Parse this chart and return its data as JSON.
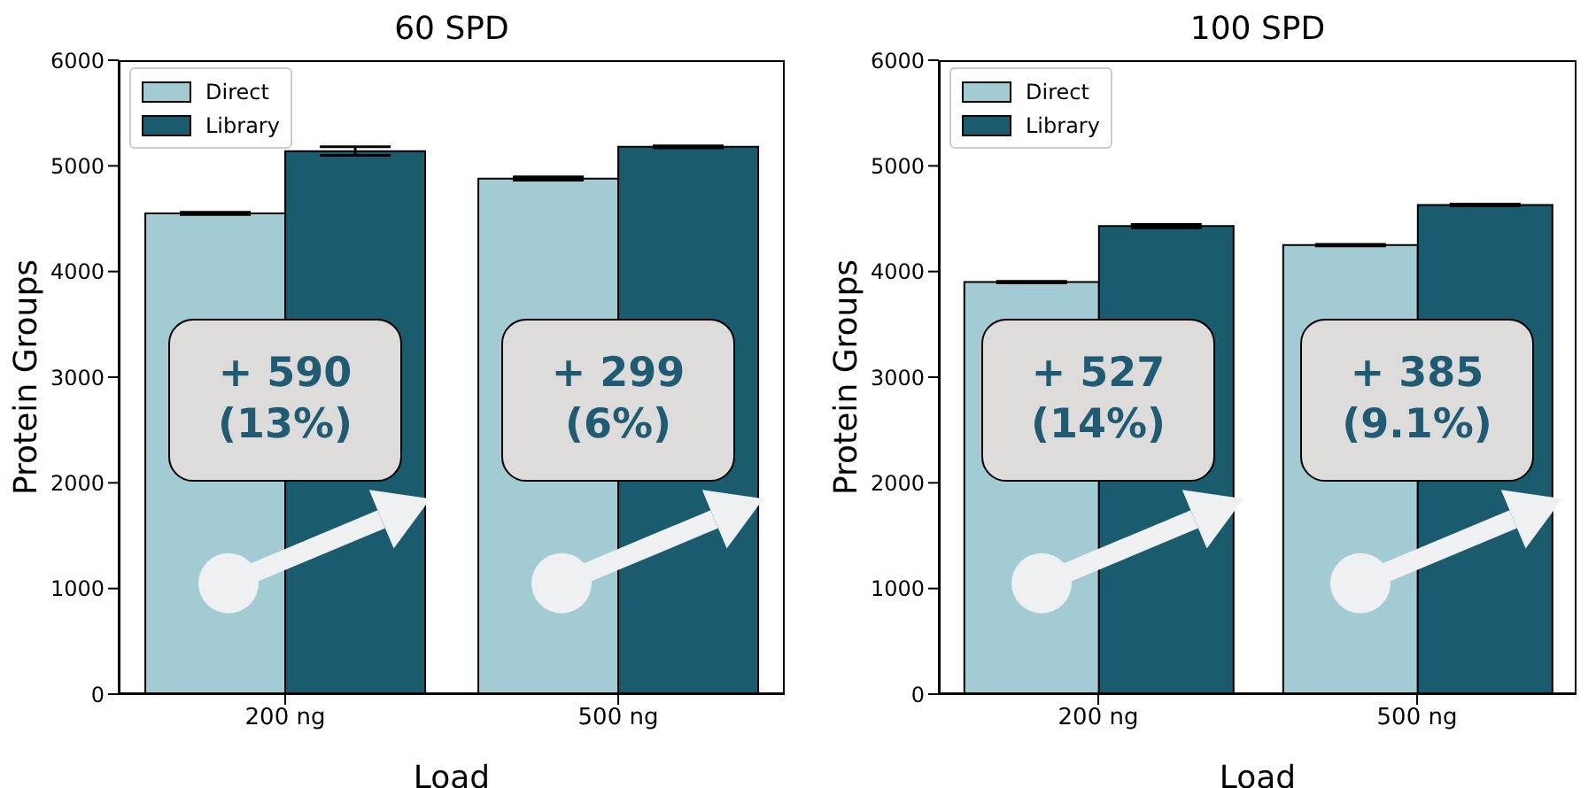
{
  "chart_data": [
    {
      "type": "bar",
      "title": "60 SPD",
      "xlabel": "Load",
      "ylabel": "Protein Groups",
      "categories": [
        "200 ng",
        "500 ng"
      ],
      "series": [
        {
          "name": "Direct",
          "color": "#a2cbd3",
          "values": [
            4550,
            4880
          ],
          "errors": [
            10,
            15
          ]
        },
        {
          "name": "Library",
          "color": "#1b5b6e",
          "values": [
            5140,
            5180
          ],
          "errors": [
            40,
            10
          ]
        }
      ],
      "ylim": [
        0,
        6000
      ],
      "yticks": [
        0,
        1000,
        2000,
        3000,
        4000,
        5000,
        6000
      ],
      "grid": false,
      "legend": "top left",
      "annotations": [
        "+ 590\n(13%)",
        "+ 299\n(6%)"
      ]
    },
    {
      "type": "bar",
      "title": "100 SPD",
      "xlabel": "Load",
      "ylabel": "Protein Groups",
      "categories": [
        "200 ng",
        "500 ng"
      ],
      "series": [
        {
          "name": "Direct",
          "color": "#a2cbd3",
          "values": [
            3900,
            4250
          ],
          "errors": [
            8,
            8
          ]
        },
        {
          "name": "Library",
          "color": "#1b5b6e",
          "values": [
            4430,
            4630
          ],
          "errors": [
            15,
            8
          ]
        }
      ],
      "ylim": [
        0,
        6000
      ],
      "yticks": [
        0,
        1000,
        2000,
        3000,
        4000,
        5000,
        6000
      ],
      "grid": false,
      "legend": "top left",
      "annotations": [
        "+ 527\n(14%)",
        "+ 385\n(9.1%)"
      ]
    }
  ]
}
